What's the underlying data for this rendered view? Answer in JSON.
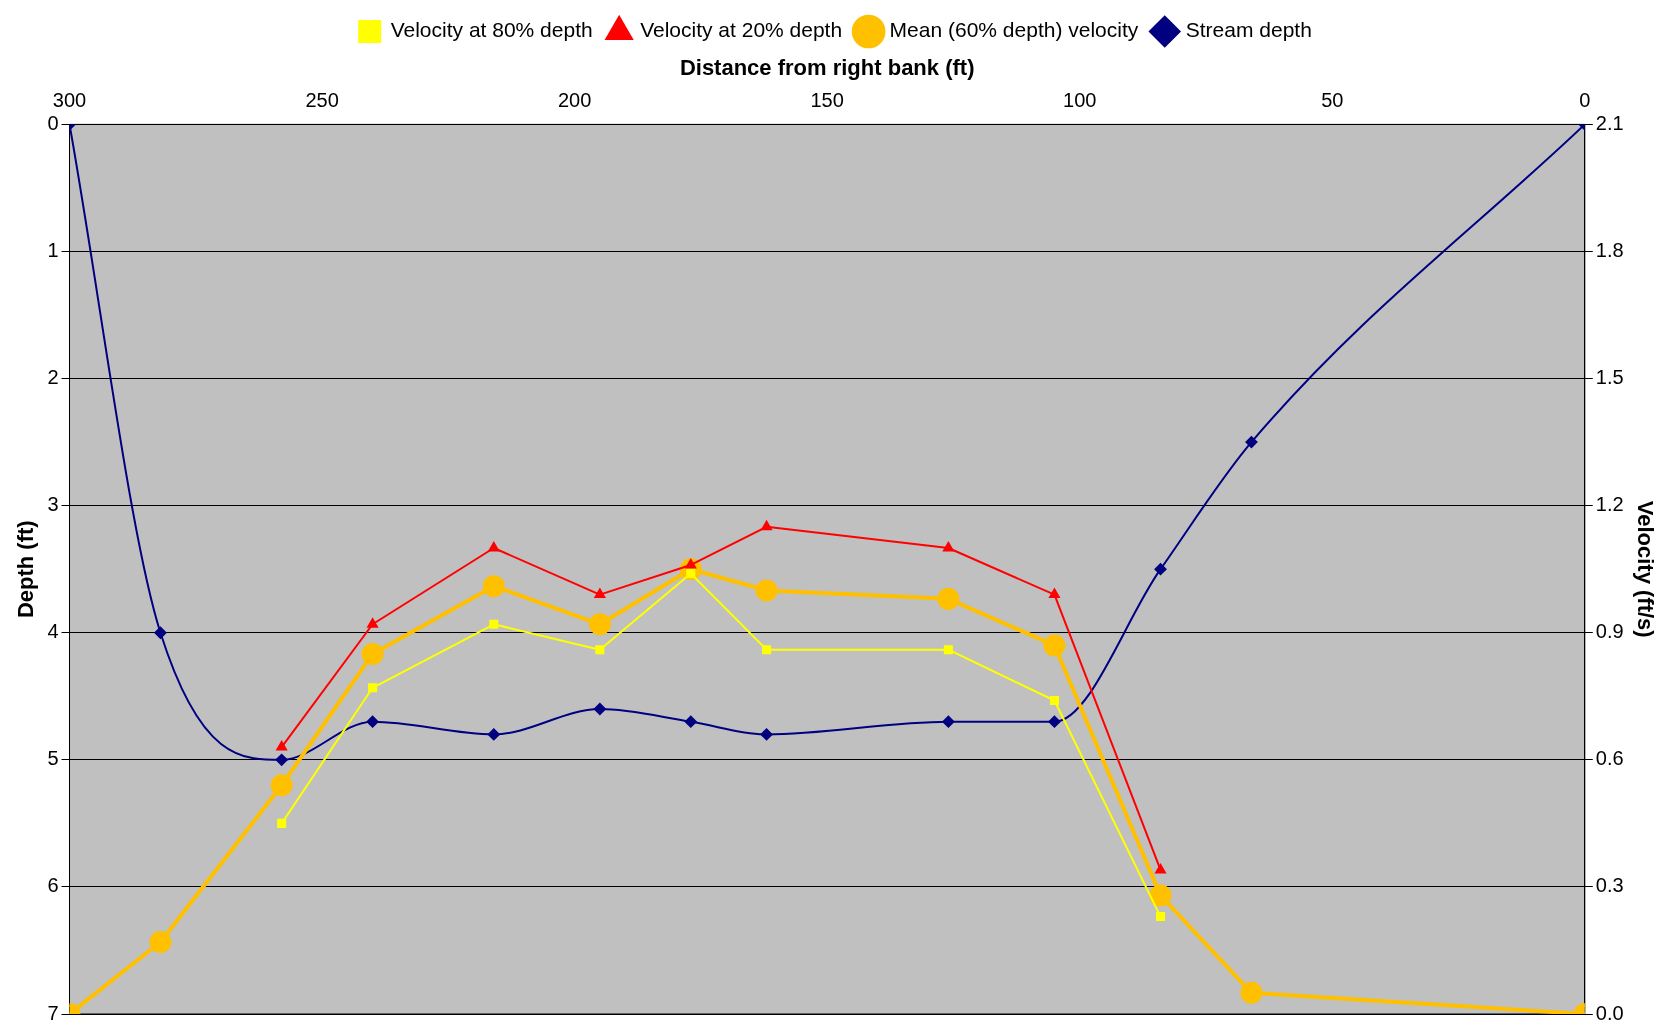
{
  "chart_data": {
    "type": "line",
    "xlabel": "Distance from right bank (ft)",
    "ylabel": "Depth (ft)",
    "y2label": "Velocity (ft/s)",
    "xlim": [
      300,
      0
    ],
    "xticks": [
      300,
      250,
      200,
      150,
      100,
      50,
      0
    ],
    "ylim": [
      7,
      0
    ],
    "yticks": [
      0,
      1,
      2,
      3,
      4,
      5,
      6,
      7
    ],
    "y2lim": [
      0,
      2.1
    ],
    "y2ticks": [
      {
        "value": 0,
        "label": "0.0"
      },
      {
        "value": 0.3,
        "label": "0.3"
      },
      {
        "value": 0.6,
        "label": "0.6"
      },
      {
        "value": 0.9,
        "label": "0.9"
      },
      {
        "value": 1.2,
        "label": "1.2"
      },
      {
        "value": 1.5,
        "label": "1.5"
      },
      {
        "value": 1.8,
        "label": "1.8"
      },
      {
        "value": 2.1,
        "label": "2.1"
      }
    ],
    "grid": "y",
    "legend": "top",
    "series": [
      {
        "name": "Velocity at 80% depth",
        "color": "#ffff00",
        "marker": "square",
        "axis": "y2",
        "x": [
          258,
          240,
          216,
          195,
          177,
          162,
          126,
          105,
          84
        ],
        "values": [
          0.45,
          0.77,
          0.92,
          0.86,
          1.04,
          0.86,
          0.86,
          0.74,
          0.23
        ]
      },
      {
        "name": "Velocity at 20% depth",
        "color": "#ff0000",
        "marker": "triangle",
        "axis": "y2",
        "x": [
          258,
          240,
          216,
          195,
          177,
          162,
          126,
          105,
          84
        ],
        "values": [
          0.63,
          0.92,
          1.1,
          0.99,
          1.06,
          1.15,
          1.1,
          0.99,
          0.34
        ]
      },
      {
        "name": "Mean (60% depth) velocity",
        "color": "#ffc000",
        "marker": "circle",
        "axis": "y2",
        "x": [
          300,
          282,
          258,
          240,
          216,
          195,
          177,
          162,
          126,
          105,
          84,
          66,
          0
        ],
        "values": [
          0,
          0.17,
          0.54,
          0.85,
          1.01,
          0.92,
          1.05,
          1.0,
          0.98,
          0.87,
          0.28,
          0.05,
          0
        ]
      },
      {
        "name": "Stream depth",
        "color": "#000080",
        "marker": "diamond",
        "axis": "y",
        "x": [
          300,
          282,
          258,
          240,
          216,
          195,
          177,
          162,
          126,
          105,
          84,
          66,
          0
        ],
        "values": [
          0,
          4,
          5,
          4.7,
          4.8,
          4.6,
          4.7,
          4.8,
          4.7,
          4.7,
          3.5,
          2.5,
          0
        ]
      }
    ]
  }
}
